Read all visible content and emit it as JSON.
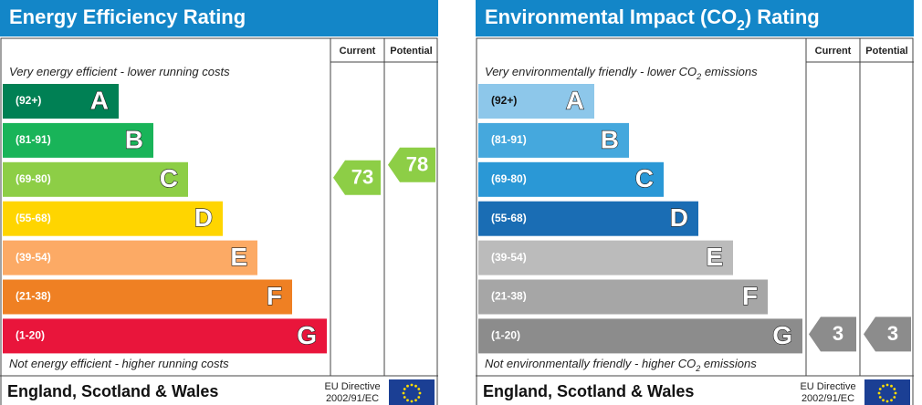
{
  "panels": [
    {
      "title": [
        {
          "text": "Energy Efficiency Rating"
        }
      ],
      "columns": [
        "Current",
        "Potential"
      ],
      "top_note": [
        {
          "text": "Very energy efficient - lower running costs"
        }
      ],
      "bottom_note": [
        {
          "text": "Not energy efficient - higher running costs"
        }
      ],
      "bands": [
        {
          "range": "(92+)",
          "letter": "A",
          "color": "#008054",
          "text_color": "#ffffff"
        },
        {
          "range": "(81-91)",
          "letter": "B",
          "color": "#19b459",
          "text_color": "#ffffff"
        },
        {
          "range": "(69-80)",
          "letter": "C",
          "color": "#8dce46",
          "text_color": "#ffffff"
        },
        {
          "range": "(55-68)",
          "letter": "D",
          "color": "#ffd500",
          "text_color": "#ffffff"
        },
        {
          "range": "(39-54)",
          "letter": "E",
          "color": "#fcaa65",
          "text_color": "#ffffff"
        },
        {
          "range": "(21-38)",
          "letter": "F",
          "color": "#ef8023",
          "text_color": "#ffffff"
        },
        {
          "range": "(1-20)",
          "letter": "G",
          "color": "#e9153b",
          "text_color": "#ffffff"
        }
      ],
      "current": 73,
      "potential": 78,
      "footer": "England, Scotland & Wales",
      "directive": [
        "EU Directive",
        "2002/91/EC"
      ]
    },
    {
      "title": [
        {
          "text": "Environmental Impact (CO"
        },
        {
          "text": "2",
          "sub": true
        },
        {
          "text": ") Rating"
        }
      ],
      "columns": [
        "Current",
        "Potential"
      ],
      "top_note": [
        {
          "text": "Very environmentally friendly - lower CO"
        },
        {
          "text": "2",
          "sub": true
        },
        {
          "text": " emissions"
        }
      ],
      "bottom_note": [
        {
          "text": "Not environmentally friendly - higher CO"
        },
        {
          "text": "2",
          "sub": true
        },
        {
          "text": " emissions"
        }
      ],
      "bands": [
        {
          "range": "(92+)",
          "letter": "A",
          "color": "#8dc7ea",
          "text_color": "#111111"
        },
        {
          "range": "(81-91)",
          "letter": "B",
          "color": "#45a8dd",
          "text_color": "#ffffff"
        },
        {
          "range": "(69-80)",
          "letter": "C",
          "color": "#2a98d6",
          "text_color": "#ffffff"
        },
        {
          "range": "(55-68)",
          "letter": "D",
          "color": "#1a6db4",
          "text_color": "#ffffff"
        },
        {
          "range": "(39-54)",
          "letter": "E",
          "color": "#bbbbbb",
          "text_color": "#ffffff"
        },
        {
          "range": "(21-38)",
          "letter": "F",
          "color": "#a6a6a6",
          "text_color": "#ffffff"
        },
        {
          "range": "(1-20)",
          "letter": "G",
          "color": "#8c8c8c",
          "text_color": "#ffffff"
        }
      ],
      "current": 3,
      "potential": 3,
      "footer": "England, Scotland & Wales",
      "directive": [
        "EU Directive",
        "2002/91/EC"
      ]
    }
  ]
}
